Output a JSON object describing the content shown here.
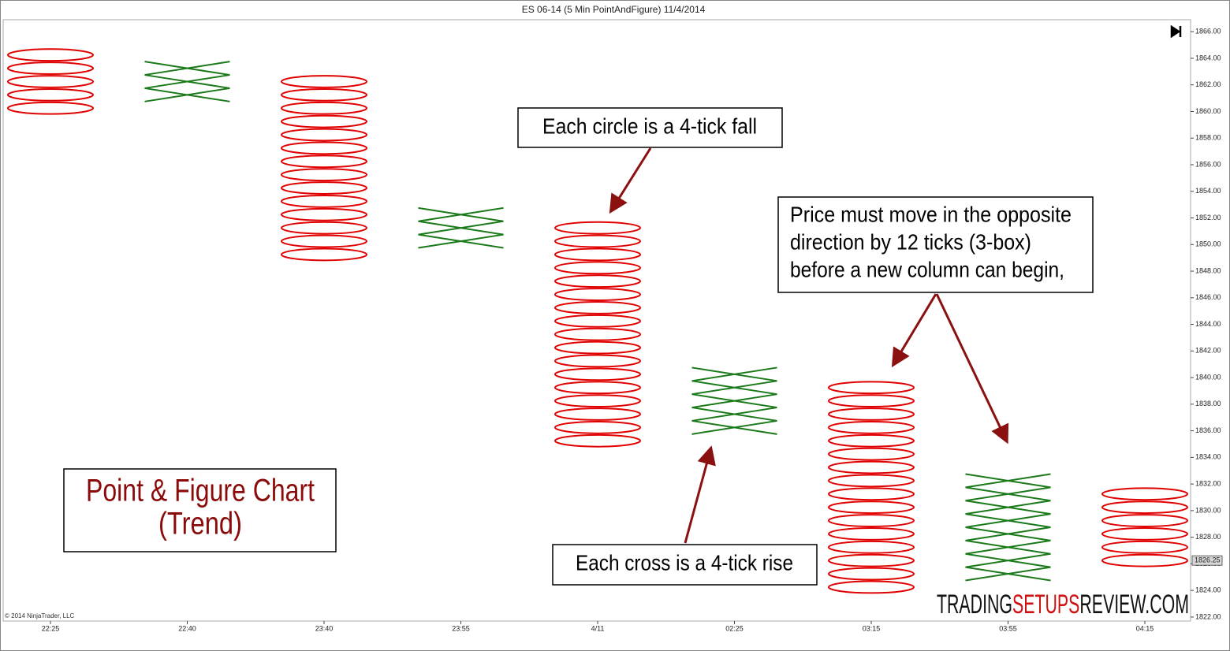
{
  "chart_data": {
    "type": "pointfigure",
    "title": "ES 06-14 (5 Min PointAndFigure)  11/4/2014",
    "copyright": "© 2014 NinjaTrader, LLC",
    "categories": [
      "22:25",
      "22:40",
      "23:40",
      "23:55",
      "4/11",
      "02:25",
      "03:15",
      "03:55",
      "04:15"
    ],
    "o_color": "#e00000",
    "x_color": "#1a7a1a",
    "columns": [
      {
        "kind": "O",
        "values": [
          1864.25,
          1863.25,
          1862.25,
          1861.25,
          1860.25
        ]
      },
      {
        "kind": "X",
        "values": [
          1863.25,
          1862.25,
          1861.25
        ]
      },
      {
        "kind": "O",
        "values": [
          1862.25,
          1861.25,
          1860.25,
          1859.25,
          1858.25,
          1857.25,
          1856.25,
          1855.25,
          1854.25,
          1853.25,
          1852.25,
          1851.25,
          1850.25,
          1849.25
        ]
      },
      {
        "kind": "X",
        "values": [
          1852.25,
          1851.25,
          1850.25
        ]
      },
      {
        "kind": "O",
        "values": [
          1851.25,
          1850.25,
          1849.25,
          1848.25,
          1847.25,
          1846.25,
          1845.25,
          1844.25,
          1843.25,
          1842.25,
          1841.25,
          1840.25,
          1839.25,
          1838.25,
          1837.25,
          1836.25,
          1835.25
        ]
      },
      {
        "kind": "X",
        "values": [
          1840.25,
          1839.25,
          1838.25,
          1837.25,
          1836.25
        ]
      },
      {
        "kind": "O",
        "values": [
          1839.25,
          1838.25,
          1837.25,
          1836.25,
          1835.25,
          1834.25,
          1833.25,
          1832.25,
          1831.25,
          1830.25,
          1829.25,
          1828.25,
          1827.25,
          1826.25,
          1825.25,
          1824.25
        ]
      },
      {
        "kind": "X",
        "values": [
          1832.25,
          1831.25,
          1830.25,
          1829.25,
          1828.25,
          1827.25,
          1826.25,
          1825.25
        ]
      },
      {
        "kind": "O",
        "values": [
          1831.25,
          1830.25,
          1829.25,
          1828.25,
          1827.25,
          1826.25
        ]
      }
    ],
    "last_price": 1826.25,
    "ylim": [
      1821.7,
      1866.9
    ],
    "yticks": [
      {
        "value": 1822,
        "label": "1822.00"
      },
      {
        "value": 1824,
        "label": "1824.00"
      },
      {
        "value": 1826,
        "label": "1826.00"
      },
      {
        "value": 1828,
        "label": "1828.00"
      },
      {
        "value": 1830,
        "label": "1830.00"
      },
      {
        "value": 1832,
        "label": "1832.00"
      },
      {
        "value": 1834,
        "label": "1834.00"
      },
      {
        "value": 1836,
        "label": "1836.00"
      },
      {
        "value": 1838,
        "label": "1838.00"
      },
      {
        "value": 1840,
        "label": "1840.00"
      },
      {
        "value": 1842,
        "label": "1842.00"
      },
      {
        "value": 1844,
        "label": "1844.00"
      },
      {
        "value": 1846,
        "label": "1846.00"
      },
      {
        "value": 1848,
        "label": "1848.00"
      },
      {
        "value": 1850,
        "label": "1850.00"
      },
      {
        "value": 1852,
        "label": "1852.00"
      },
      {
        "value": 1854,
        "label": "1854.00"
      },
      {
        "value": 1856,
        "label": "1856.00"
      },
      {
        "value": 1858,
        "label": "1858.00"
      },
      {
        "value": 1860,
        "label": "1860.00"
      },
      {
        "value": 1862,
        "label": "1862.00"
      },
      {
        "value": 1864,
        "label": "1864.00"
      },
      {
        "value": 1866,
        "label": "1866.00"
      }
    ],
    "annotations": {
      "circle": "Each circle is a 4-tick fall",
      "cross": "Each cross is a 4-tick rise",
      "reversal": [
        "Price must move in the opposite",
        "direction by 12 ticks (3-box)",
        "before a new column can begin,"
      ],
      "heading": [
        "Point & Figure Chart",
        "(Trend)"
      ]
    },
    "watermark": [
      "TRADING",
      "SETUPS",
      "REVIEW.COM"
    ]
  }
}
